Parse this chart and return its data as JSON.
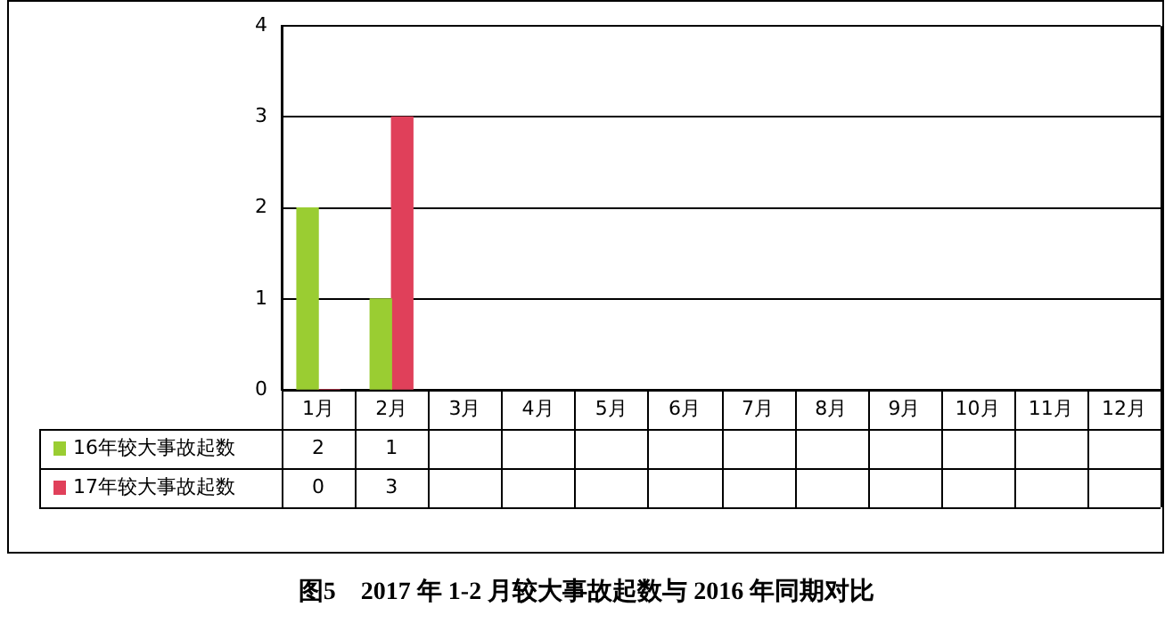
{
  "chart_data": {
    "type": "bar",
    "title": "图5　2017 年 1-2 月较大事故起数与 2016 年同期对比",
    "categories": [
      "1月",
      "2月",
      "3月",
      "4月",
      "5月",
      "6月",
      "7月",
      "8月",
      "9月",
      "10月",
      "11月",
      "12月"
    ],
    "series": [
      {
        "name": "16年较大事故起数",
        "color": "#9acd32",
        "values": [
          2,
          1,
          null,
          null,
          null,
          null,
          null,
          null,
          null,
          null,
          null,
          null
        ]
      },
      {
        "name": "17年较大事故起数",
        "color": "#e0405a",
        "values": [
          0,
          3,
          null,
          null,
          null,
          null,
          null,
          null,
          null,
          null,
          null,
          null
        ]
      }
    ],
    "ylim": [
      0,
      4
    ],
    "yticks": [
      0,
      1,
      2,
      3,
      4
    ],
    "grid": "y",
    "legend": "bottom left",
    "data_labels": true
  }
}
